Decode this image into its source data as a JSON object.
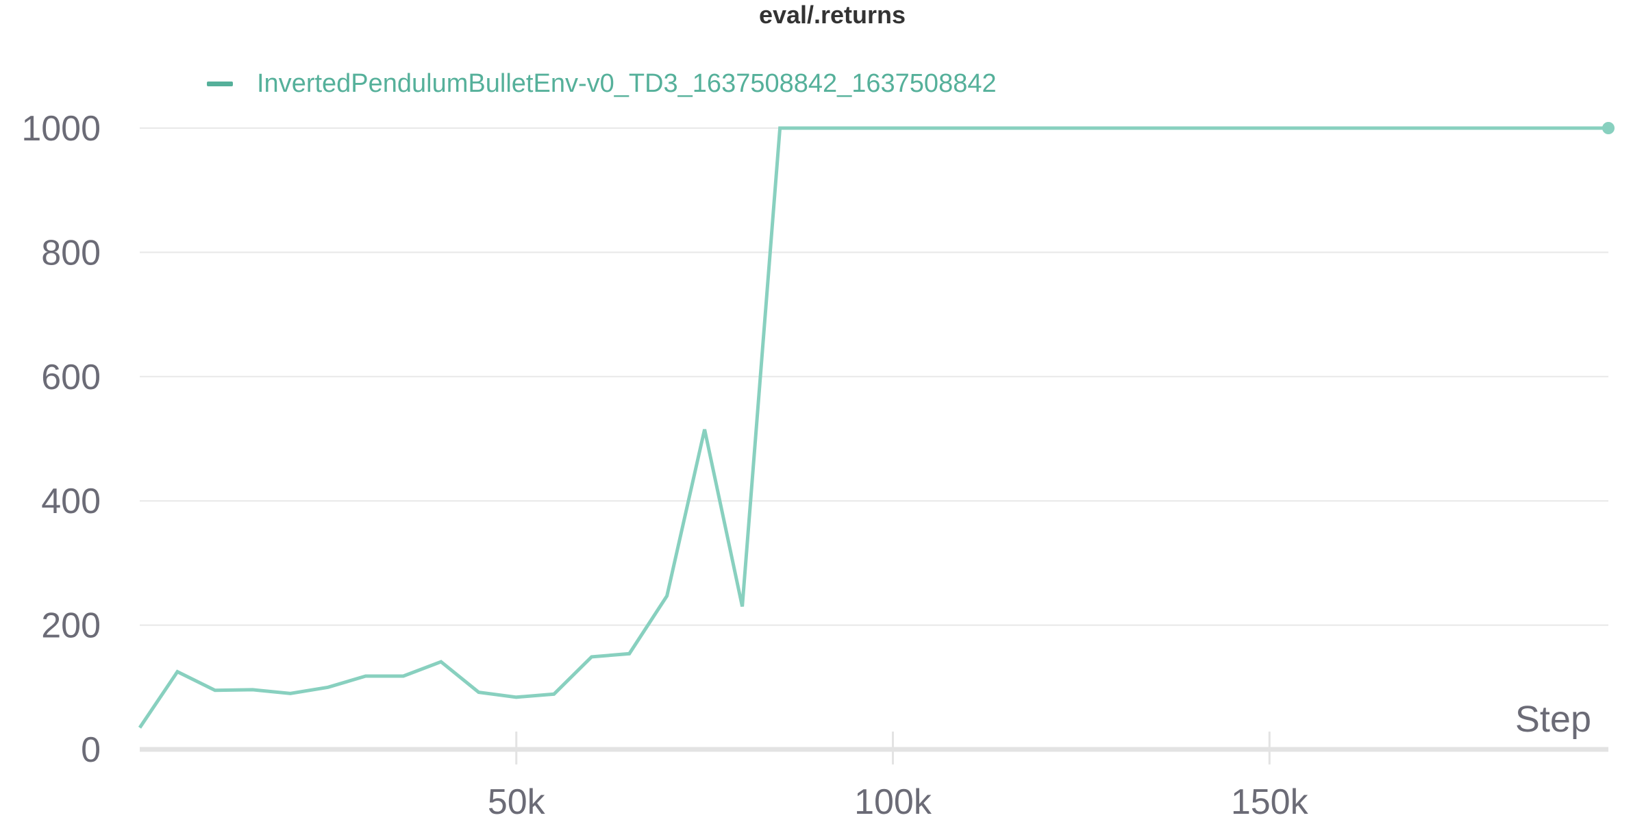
{
  "colors": {
    "series": "#88d0bf",
    "legend": "#55b09a",
    "grid": "#e8e8e8",
    "axis": "#e3e3e3",
    "tick_text": "#6b6b76",
    "title": "#333333"
  },
  "chart_data": {
    "type": "line",
    "title": "eval/.returns",
    "xlabel": "Step",
    "ylabel": "",
    "xlim": [
      0,
      195000
    ],
    "ylim": [
      0,
      1000
    ],
    "x_ticks": [
      50000,
      100000,
      150000
    ],
    "x_tick_labels": [
      "50k",
      "100k",
      "150k"
    ],
    "y_ticks": [
      0,
      200,
      400,
      600,
      800,
      1000
    ],
    "y_tick_labels": [
      "0",
      "200",
      "400",
      "600",
      "800",
      "1000"
    ],
    "grid": true,
    "legend_position": "top-left",
    "series": [
      {
        "name": "InvertedPendulumBulletEnv-v0_TD3_1637508842_1637508842",
        "x": [
          0,
          5000,
          10000,
          15000,
          20000,
          25000,
          30000,
          35000,
          40000,
          45000,
          50000,
          55000,
          60000,
          65000,
          70000,
          75000,
          80000,
          85000,
          195000
        ],
        "y": [
          35,
          125,
          95,
          96,
          90,
          100,
          118,
          118,
          141,
          92,
          84,
          89,
          149,
          154,
          247,
          515,
          230,
          1000,
          1000
        ]
      }
    ]
  }
}
